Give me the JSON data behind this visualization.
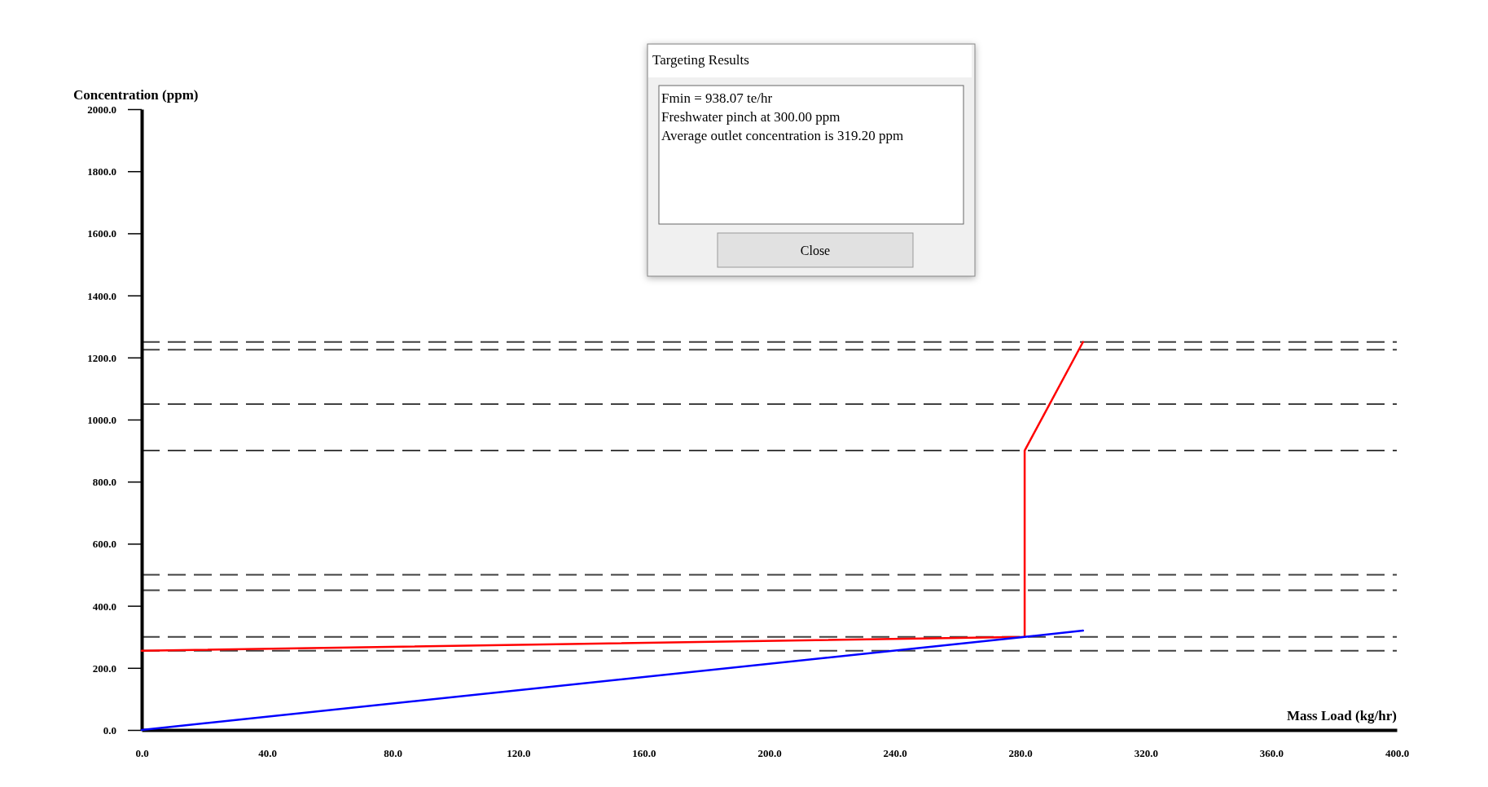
{
  "chart_data": {
    "type": "line",
    "xlabel": "Mass Load (kg/hr)",
    "ylabel": "Concentration (ppm)",
    "xlim": [
      0,
      400
    ],
    "ylim": [
      0,
      2000
    ],
    "xticks": [
      {
        "value": 0,
        "label": "0.0"
      },
      {
        "value": 40,
        "label": "40.0"
      },
      {
        "value": 80,
        "label": "80.0"
      },
      {
        "value": 120,
        "label": "120.0"
      },
      {
        "value": 160,
        "label": "160.0"
      },
      {
        "value": 200,
        "label": "200.0"
      },
      {
        "value": 240,
        "label": "240.0"
      },
      {
        "value": 280,
        "label": "280.0"
      },
      {
        "value": 320,
        "label": "320.0"
      },
      {
        "value": 360,
        "label": "360.0"
      },
      {
        "value": 400,
        "label": "400.0"
      }
    ],
    "yticks": [
      {
        "value": 0,
        "label": "0.0"
      },
      {
        "value": 200,
        "label": "200.0"
      },
      {
        "value": 400,
        "label": "400.0"
      },
      {
        "value": 600,
        "label": "600.0"
      },
      {
        "value": 800,
        "label": "800.0"
      },
      {
        "value": 1000,
        "label": "1000.0"
      },
      {
        "value": 1200,
        "label": "1200.0"
      },
      {
        "value": 1400,
        "label": "1400.0"
      },
      {
        "value": 1600,
        "label": "1600.0"
      },
      {
        "value": 1800,
        "label": "1800.0"
      },
      {
        "value": 2000,
        "label": "2000.0"
      }
    ],
    "series": [
      {
        "color": "#ff0000",
        "x": [
          0,
          281.4,
          281.4,
          300
        ],
        "values": [
          255,
          300,
          900,
          1250
        ]
      },
      {
        "color": "#0000ff",
        "x": [
          0,
          281.4,
          300
        ],
        "values": [
          0,
          300,
          320
        ]
      }
    ],
    "ref_lines": [
      {
        "axis": "y",
        "value": 1250,
        "color": "#404040",
        "line_style": "dashed"
      },
      {
        "axis": "y",
        "value": 1225,
        "color": "#404040",
        "line_style": "dashed"
      },
      {
        "axis": "y",
        "value": 1050,
        "color": "#404040",
        "line_style": "dashed"
      },
      {
        "axis": "y",
        "value": 900,
        "color": "#404040",
        "line_style": "dashed"
      },
      {
        "axis": "y",
        "value": 500,
        "color": "#404040",
        "line_style": "dashed"
      },
      {
        "axis": "y",
        "value": 450,
        "color": "#404040",
        "line_style": "dashed"
      },
      {
        "axis": "y",
        "value": 300,
        "color": "#404040",
        "line_style": "dashed"
      },
      {
        "axis": "y",
        "value": 255,
        "color": "#404040",
        "line_style": "dashed"
      }
    ],
    "annotations": [
      "Targeting Results",
      "Fmin = 938.07 te/hr",
      "Freshwater pinch at 300.00 ppm",
      "Average outlet concentration is 319.20 ppm",
      "Close"
    ],
    "grid": false,
    "marker": "none",
    "line_style": "solid"
  }
}
